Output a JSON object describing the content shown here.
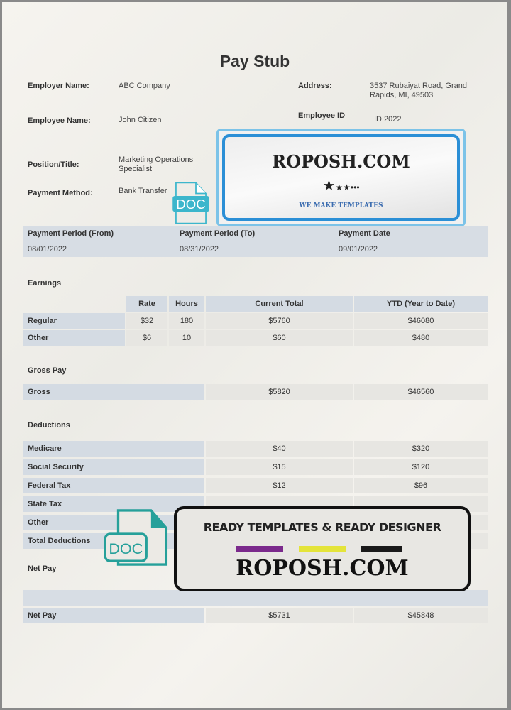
{
  "title": "Pay Stub",
  "employer": {
    "label": "Employer Name:",
    "value": "ABC Company"
  },
  "address": {
    "label": "Address:",
    "line1": "3537 Rubaiyat Road, Grand",
    "line2": "Rapids, MI, 49503"
  },
  "employee": {
    "label": "Employee Name:",
    "value": "John Citizen"
  },
  "employee_id": {
    "label": "Employee ID",
    "value": "ID 2022"
  },
  "position": {
    "label": "Position/Title:",
    "value": "Marketing Operations Specialist"
  },
  "payment_method": {
    "label": "Payment Method:",
    "value": "Bank Transfer"
  },
  "period": {
    "from_label": "Payment Period (From)",
    "from": "08/01/2022",
    "to_label": "Payment Period (To)",
    "to": "08/31/2022",
    "date_label": "Payment Date",
    "date": "09/01/2022"
  },
  "earnings": {
    "title": "Earnings",
    "headers": [
      "Rate",
      "Hours",
      "Current Total",
      "YTD (Year to Date)"
    ],
    "rows": [
      {
        "label": "Regular",
        "rate": "$32",
        "hours": "180",
        "current": "$5760",
        "ytd": "$46080"
      },
      {
        "label": "Other",
        "rate": "$6",
        "hours": "10",
        "current": "$60",
        "ytd": "$480"
      }
    ]
  },
  "gross": {
    "title": "Gross Pay",
    "label": "Gross",
    "current": "$5820",
    "ytd": "$46560"
  },
  "deductions": {
    "title": "Deductions",
    "rows": [
      {
        "label": "Medicare",
        "current": "$40",
        "ytd": "$320"
      },
      {
        "label": "Social Security",
        "current": "$15",
        "ytd": "$120"
      },
      {
        "label": "Federal Tax",
        "current": "$12",
        "ytd": "$96"
      },
      {
        "label": "State Tax",
        "current": "",
        "ytd": ""
      },
      {
        "label": "Other",
        "current": "",
        "ytd": ""
      },
      {
        "label": "Total Deductions",
        "current": "",
        "ytd": ""
      }
    ]
  },
  "net": {
    "title": "Net Pay",
    "label": "Net Pay",
    "current": "$5731",
    "ytd": "$45848"
  },
  "watermark1": {
    "brand": "ROPOSH.COM",
    "tagline": "WE MAKE TEMPLATES",
    "icon": "DOC"
  },
  "watermark2": {
    "headline": "READY TEMPLATES & READY DESIGNER",
    "brand": "ROPOSH.COM",
    "icon": "DOC",
    "bar_colors": [
      "#7b2a8c",
      "#e4e43a",
      "#1a1a1a"
    ]
  }
}
